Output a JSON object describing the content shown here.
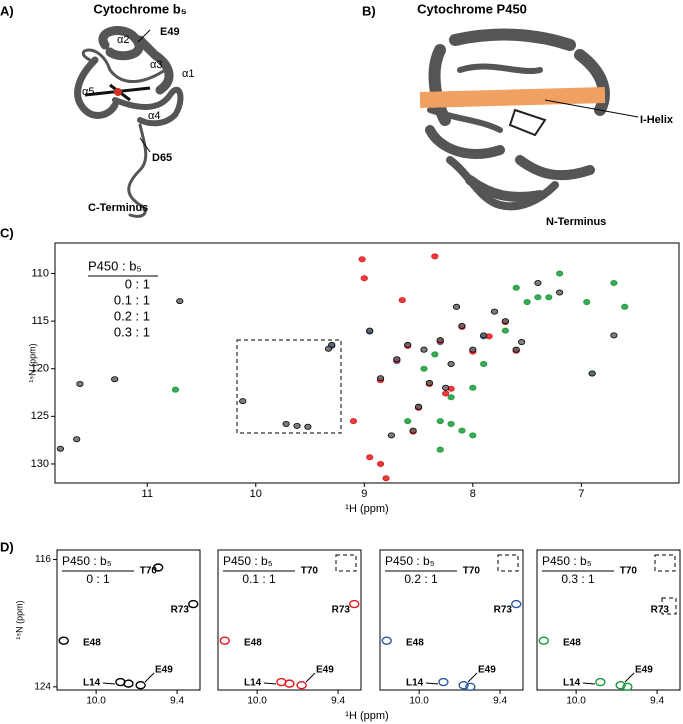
{
  "panels": {
    "a": {
      "label": "A)",
      "title": "Cytochrome b₅",
      "labels": [
        "α2",
        "E49",
        "α3",
        "α1",
        "α5",
        "α4",
        "D65",
        "C-Terminus"
      ]
    },
    "b": {
      "label": "B)",
      "title": "Cytochrome P450",
      "labels": [
        "I-Helix",
        "N-Terminus"
      ]
    },
    "c": {
      "label": "C)"
    },
    "d": {
      "label": "D)",
      "x_label": "¹H (ppm)",
      "y_label": "¹⁵N (ppm)"
    }
  },
  "chart_data": [
    {
      "type": "scatter",
      "legend_title": "P450 : b₅",
      "x_label": "¹H (ppm)",
      "y_label": "¹⁵N (ppm)",
      "xlim": [
        11.85,
        6.1
      ],
      "ylim": [
        132,
        106.8
      ],
      "xticks": [
        11,
        10,
        9,
        8,
        7
      ],
      "yticks": [
        110,
        115,
        120,
        125,
        130
      ],
      "series": [
        {
          "name": "0 : 1",
          "color": "#000000",
          "x": [
            11.8,
            11.65,
            11.62,
            11.3,
            10.7,
            9.3,
            9.33,
            10.12,
            9.72,
            9.62,
            9.52,
            8.95,
            8.85,
            8.7,
            8.6,
            8.5,
            8.45,
            8.4,
            8.3,
            8.25,
            8.2,
            8.15,
            8.1,
            8.0,
            7.9,
            7.8,
            7.7,
            7.6,
            7.55,
            7.4,
            7.2,
            6.9,
            6.7,
            8.55,
            8.75
          ],
          "y": [
            128.4,
            127.4,
            121.6,
            121.1,
            112.9,
            117.5,
            117.9,
            123.4,
            125.8,
            126,
            126.1,
            116,
            121,
            119,
            117.5,
            124,
            118,
            121.5,
            117,
            122,
            119.5,
            113.5,
            115.5,
            118,
            116.5,
            114,
            115,
            118,
            117.2,
            111,
            112,
            120.5,
            116.5,
            126.5,
            127
          ]
        },
        {
          "name": "0.1 : 1",
          "color": "#e31a1c",
          "x": [
            9.02,
            8.95,
            9.1,
            8.85,
            8.7,
            8.6,
            8.65,
            8.5,
            8.4,
            8.3,
            8.2,
            8.1,
            8.0,
            7.85,
            7.7,
            7.6,
            8.35,
            8.8,
            8.55,
            8.25,
            9.0,
            8.85
          ],
          "y": [
            108.5,
            129.3,
            125.5,
            121.2,
            119.1,
            117.6,
            112.8,
            124.1,
            121.6,
            117.1,
            122.1,
            115.6,
            118.2,
            116.6,
            115.1,
            118.1,
            108.2,
            131.5,
            126.6,
            122.6,
            110.5,
            130
          ]
        },
        {
          "name": "0.2 : 1",
          "color": "#2c5aa0",
          "x": [
            8.95,
            8.7,
            8.5,
            8.3,
            8.1,
            7.9,
            7.6,
            9.3
          ],
          "y": [
            116.1,
            119.2,
            124.1,
            117.2,
            115.6,
            116.6,
            118.1,
            117.6
          ]
        },
        {
          "name": "0.3 : 1",
          "color": "#1a9a3a",
          "x": [
            10.74,
            8.5,
            8.45,
            8.4,
            8.3,
            8.2,
            8.1,
            8.0,
            7.9,
            7.6,
            7.5,
            7.4,
            7.2,
            6.9,
            6.7,
            6.6,
            8.35,
            8.2,
            8.0,
            7.7,
            7.3,
            6.95,
            8.6,
            8.3
          ],
          "y": [
            122.2,
            124,
            120,
            121.5,
            125.5,
            125.8,
            126.5,
            122,
            119.5,
            111.5,
            113,
            112.5,
            110,
            120.5,
            111,
            113.5,
            118.5,
            123,
            127,
            116,
            112.5,
            113,
            125.5,
            128.5
          ]
        }
      ]
    },
    {
      "type": "scatter",
      "legend_title": "P450 : b₅",
      "xlim": [
        10.29,
        9.23
      ],
      "ylim": [
        124.2,
        115.4
      ],
      "xticks": [
        {
          "value": 10,
          "label": "10.0"
        },
        9.4
      ],
      "yticks": [
        116,
        124
      ],
      "peak_labels": [
        "T70",
        "R73",
        "E48",
        "L14",
        "E49"
      ],
      "series": [
        {
          "name": "0 : 1",
          "color": "#000000",
          "x": [
            9.54,
            9.28,
            10.24,
            9.82,
            9.76,
            9.67
          ],
          "y": [
            116.5,
            118.8,
            121.1,
            123.7,
            123.8,
            123.9
          ]
        }
      ]
    },
    {
      "type": "scatter",
      "legend_title": "P450 : b₅",
      "xlim": [
        10.29,
        9.23
      ],
      "ylim": [
        124.2,
        115.4
      ],
      "xticks": [
        {
          "value": 10,
          "label": "10.0"
        },
        9.4
      ],
      "peak_labels": [
        "T70",
        "R73",
        "E48",
        "L14",
        "E49"
      ],
      "series": [
        {
          "name": "0.1 : 1",
          "color": "#e31a1c",
          "x": [
            10.24,
            9.82,
            9.76,
            9.67,
            9.28
          ],
          "y": [
            121.1,
            123.7,
            123.8,
            123.9,
            118.8
          ]
        }
      ]
    },
    {
      "type": "scatter",
      "legend_title": "P450 : b₅",
      "xlim": [
        10.29,
        9.23
      ],
      "ylim": [
        124.2,
        115.4
      ],
      "xticks": [
        {
          "value": 10,
          "label": "10.0"
        },
        9.4
      ],
      "peak_labels": [
        "T70",
        "R73",
        "E48",
        "L14",
        "E49"
      ],
      "series": [
        {
          "name": "0.2 : 1",
          "color": "#2c5aa0",
          "x": [
            10.24,
            9.82,
            9.67,
            9.62,
            9.28
          ],
          "y": [
            121.1,
            123.7,
            123.9,
            124,
            118.8
          ]
        }
      ]
    },
    {
      "type": "scatter",
      "legend_title": "P450 : b₅",
      "xlim": [
        10.29,
        9.23
      ],
      "ylim": [
        124.2,
        115.4
      ],
      "xticks": [
        {
          "value": 10,
          "label": "10.0"
        },
        9.4
      ],
      "peak_labels": [
        "T70",
        "R73",
        "E48",
        "L14",
        "E49"
      ],
      "series": [
        {
          "name": "0.3 : 1",
          "color": "#1a9a3a",
          "x": [
            10.24,
            9.82,
            9.67,
            9.62
          ],
          "y": [
            121.1,
            123.7,
            123.9,
            124
          ]
        }
      ]
    }
  ]
}
